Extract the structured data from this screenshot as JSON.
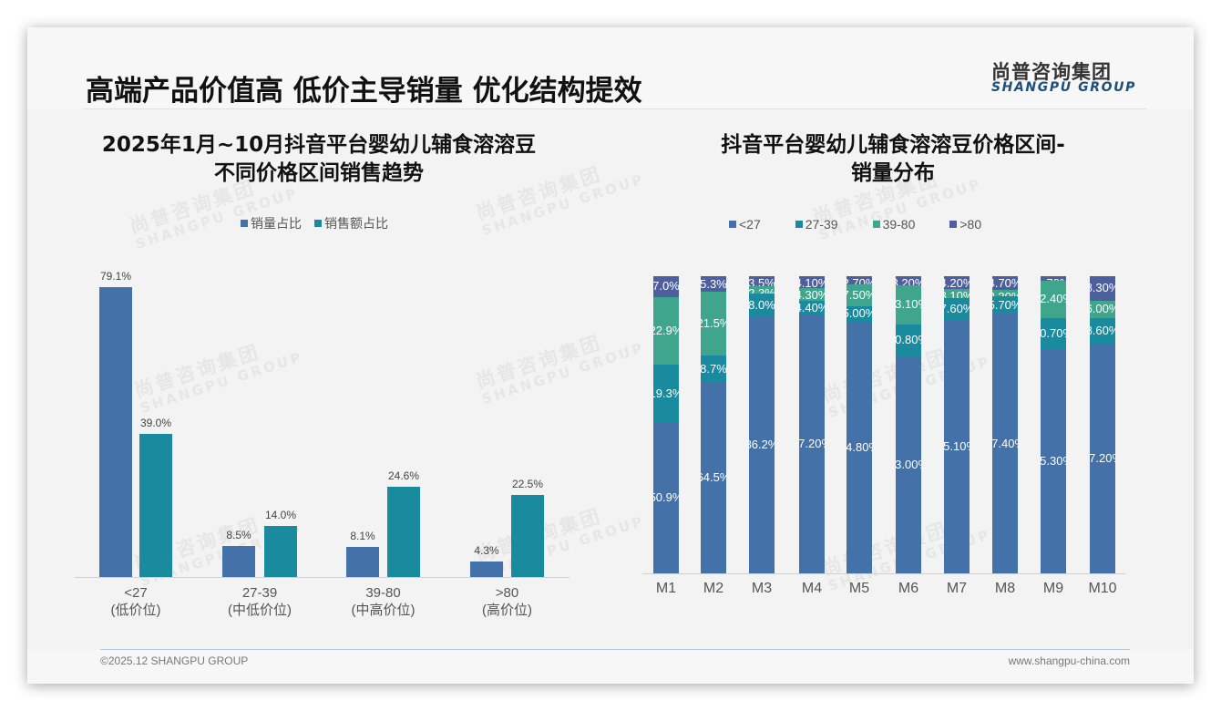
{
  "header": {
    "title": "高端产品价值高 低价主导销量 优化结构提效",
    "logo_cn": "尚普咨询集团",
    "logo_en": "SHANGPU GROUP"
  },
  "watermark": {
    "cn": "尚普咨询集团",
    "en": "SHANGPU GROUP"
  },
  "footer": {
    "copyright": "©2025.12 SHANGPU GROUP",
    "website": "www.shangpu-china.com"
  },
  "left_chart": {
    "title_line1": "2025年1月~10月抖音平台婴幼儿辅食溶溶豆",
    "title_line2": "不同价格区间销售趋势",
    "legend": [
      {
        "label": "销量占比",
        "color": "#4472a8"
      },
      {
        "label": "销售额占比",
        "color": "#1a8a9e"
      }
    ],
    "categories": [
      {
        "range": "<27",
        "tier": "(低价位)",
        "volume": 79.1,
        "volume_label": "79.1%",
        "sales": 39.0,
        "sales_label": "39.0%"
      },
      {
        "range": "27-39",
        "tier": "(中低价位)",
        "volume": 8.5,
        "volume_label": "8.5%",
        "sales": 14.0,
        "sales_label": "14.0%"
      },
      {
        "range": "39-80",
        "tier": "(中高价位)",
        "volume": 8.1,
        "volume_label": "8.1%",
        "sales": 24.6,
        "sales_label": "24.6%"
      },
      {
        "range": ">80",
        "tier": "(高价位)",
        "volume": 4.3,
        "volume_label": "4.3%",
        "sales": 22.5,
        "sales_label": "22.5%"
      }
    ]
  },
  "right_chart": {
    "title_line1": "抖音平台婴幼儿辅食溶溶豆价格区间-",
    "title_line2": "销量分布",
    "legend": [
      {
        "label": "<27",
        "color": "#4472a8"
      },
      {
        "label": "27-39",
        "color": "#1a8a9e"
      },
      {
        "label": "39-80",
        "color": "#3fa58c"
      },
      {
        "label": ">80",
        "color": "#4e5f9e"
      }
    ],
    "months": [
      {
        "m": "M1",
        "v": [
          50.9,
          19.3,
          22.9,
          7.0
        ],
        "labels": [
          "50.9%",
          "19.3%",
          "22.9%",
          "7.0%"
        ]
      },
      {
        "m": "M2",
        "v": [
          64.5,
          8.7,
          21.5,
          5.3
        ],
        "labels": [
          "64.5%",
          "8.7%",
          "21.5%",
          "5.3%"
        ]
      },
      {
        "m": "M3",
        "v": [
          86.2,
          8.0,
          2.3,
          3.5
        ],
        "labels": [
          "86.2%",
          "8.0%",
          "2.3%",
          "3.5%"
        ]
      },
      {
        "m": "M4",
        "v": [
          87.2,
          4.4,
          4.3,
          4.1
        ],
        "labels": [
          "87.20%",
          "4.40%",
          "4.30%",
          "4.10%"
        ]
      },
      {
        "m": "M5",
        "v": [
          84.8,
          5.0,
          7.5,
          2.7
        ],
        "labels": [
          "84.80%",
          "5.00%",
          "7.50%",
          "2.70%"
        ]
      },
      {
        "m": "M6",
        "v": [
          73.0,
          10.8,
          13.1,
          3.2
        ],
        "labels": [
          "73.00%",
          "10.80%",
          "13.10%",
          "3.20%"
        ]
      },
      {
        "m": "M7",
        "v": [
          85.1,
          7.6,
          3.1,
          4.2
        ],
        "labels": [
          "85.10%",
          "7.60%",
          "3.10%",
          "4.20%"
        ]
      },
      {
        "m": "M8",
        "v": [
          87.4,
          5.7,
          2.3,
          4.7
        ],
        "labels": [
          "87.40%",
          "5.70%",
          "2.30%",
          "4.70%"
        ]
      },
      {
        "m": "M9",
        "v": [
          75.3,
          10.7,
          12.4,
          1.7
        ],
        "labels": [
          "75.30%",
          "10.70%",
          "12.40%",
          "1.70%"
        ]
      },
      {
        "m": "M10",
        "v": [
          77.2,
          8.6,
          6.0,
          8.3
        ],
        "labels": [
          "77.20%",
          "8.60%",
          "6.00%",
          "8.30%"
        ]
      }
    ]
  },
  "chart_data": [
    {
      "type": "bar",
      "title": "2025年1月~10月抖音平台婴幼儿辅食溶溶豆不同价格区间销售趋势",
      "categories": [
        "<27 (低价位)",
        "27-39 (中低价位)",
        "39-80 (中高价位)",
        ">80 (高价位)"
      ],
      "series": [
        {
          "name": "销量占比",
          "values": [
            79.1,
            8.5,
            8.1,
            4.3
          ]
        },
        {
          "name": "销售额占比",
          "values": [
            39.0,
            14.0,
            24.6,
            22.5
          ]
        }
      ],
      "xlabel": "",
      "ylabel": "",
      "ylim": [
        0,
        80
      ],
      "legend_position": "top",
      "grid": false
    },
    {
      "type": "bar",
      "stacked": true,
      "title": "抖音平台婴幼儿辅食溶溶豆价格区间-销量分布",
      "categories": [
        "M1",
        "M2",
        "M3",
        "M4",
        "M5",
        "M6",
        "M7",
        "M8",
        "M9",
        "M10"
      ],
      "series": [
        {
          "name": "<27",
          "values": [
            50.9,
            64.5,
            86.2,
            87.2,
            84.8,
            73.0,
            85.1,
            87.4,
            75.3,
            77.2
          ]
        },
        {
          "name": "27-39",
          "values": [
            19.3,
            8.7,
            8.0,
            4.4,
            5.0,
            10.8,
            7.6,
            5.7,
            10.7,
            8.6
          ]
        },
        {
          "name": "39-80",
          "values": [
            22.9,
            21.5,
            2.3,
            4.3,
            7.5,
            13.1,
            3.1,
            2.3,
            12.4,
            6.0
          ]
        },
        {
          "name": ">80",
          "values": [
            7.0,
            5.3,
            3.5,
            4.1,
            2.7,
            3.2,
            4.2,
            4.7,
            1.7,
            8.3
          ]
        }
      ],
      "xlabel": "",
      "ylabel": "",
      "ylim": [
        0,
        100
      ],
      "legend_position": "top",
      "grid": false
    }
  ]
}
